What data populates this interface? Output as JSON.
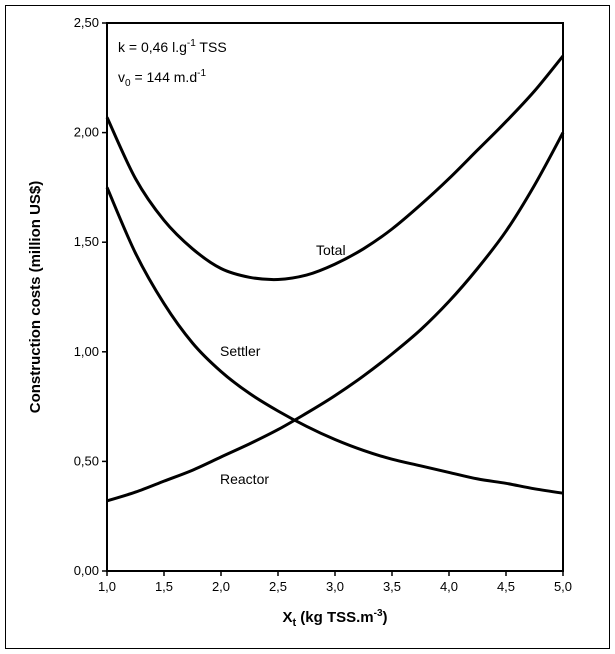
{
  "chart_data": {
    "type": "line",
    "xlabel_main": "X",
    "xlabel_sub": "t",
    "xlabel_rest": " (kg TSS.m",
    "xlabel_sup": "-3",
    "xlabel_end": ")",
    "ylabel": "Construction costs (million US$)",
    "xlim": [
      1.0,
      5.0
    ],
    "ylim": [
      0.0,
      2.5
    ],
    "xticks": [
      "1,0",
      "1,5",
      "2,0",
      "2,5",
      "3,0",
      "3,5",
      "4,0",
      "4,5",
      "5,0"
    ],
    "yticks": [
      "0,00",
      "0,50",
      "1,00",
      "1,50",
      "2,00",
      "2,50"
    ],
    "grid": false,
    "annotations": {
      "k_prefix": "k = 0,46 l.g",
      "k_sup": "-1",
      "k_suffix": " TSS",
      "v_main": "v",
      "v_sub": "0",
      "v_mid": " = 144 m.d",
      "v_sup": "-1"
    },
    "series": [
      {
        "name": "Total",
        "x": [
          1.0,
          1.25,
          1.5,
          1.75,
          2.0,
          2.25,
          2.5,
          2.75,
          3.0,
          3.25,
          3.5,
          3.75,
          4.0,
          4.25,
          4.5,
          4.75,
          5.0
        ],
        "values": [
          2.07,
          1.79,
          1.6,
          1.47,
          1.38,
          1.34,
          1.33,
          1.35,
          1.4,
          1.47,
          1.56,
          1.67,
          1.79,
          1.92,
          2.05,
          2.19,
          2.35
        ]
      },
      {
        "name": "Settler",
        "x": [
          1.0,
          1.25,
          1.5,
          1.75,
          2.0,
          2.25,
          2.5,
          2.75,
          3.0,
          3.25,
          3.5,
          3.75,
          4.0,
          4.25,
          4.5,
          4.75,
          5.0
        ],
        "values": [
          1.75,
          1.45,
          1.22,
          1.04,
          0.91,
          0.81,
          0.73,
          0.66,
          0.6,
          0.55,
          0.51,
          0.48,
          0.45,
          0.42,
          0.4,
          0.375,
          0.355
        ]
      },
      {
        "name": "Reactor",
        "x": [
          1.0,
          1.25,
          1.5,
          1.75,
          2.0,
          2.25,
          2.5,
          2.75,
          3.0,
          3.25,
          3.5,
          3.75,
          4.0,
          4.25,
          4.5,
          4.75,
          5.0
        ],
        "values": [
          0.32,
          0.36,
          0.41,
          0.46,
          0.52,
          0.58,
          0.645,
          0.72,
          0.8,
          0.89,
          0.99,
          1.1,
          1.23,
          1.38,
          1.55,
          1.76,
          2.0
        ]
      }
    ]
  }
}
